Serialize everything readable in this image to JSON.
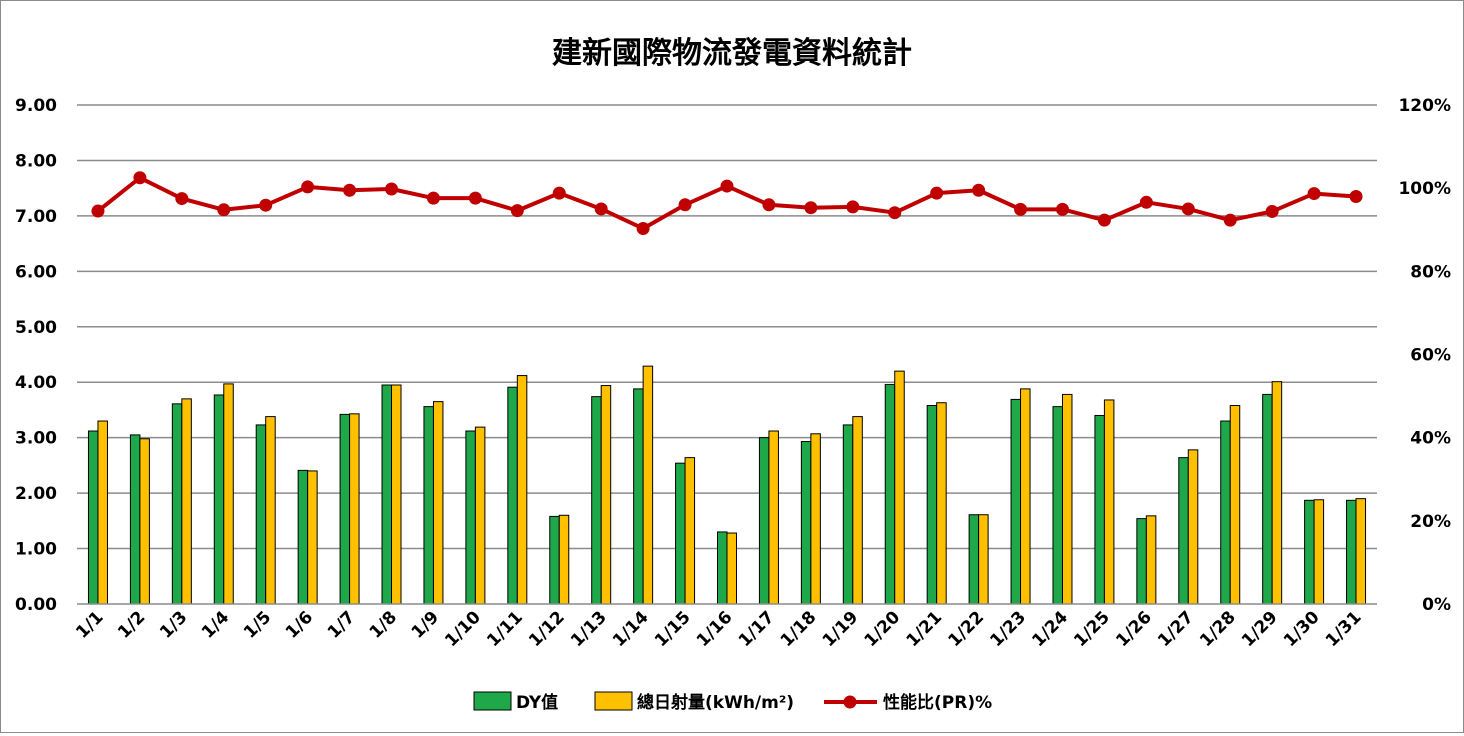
{
  "chart_data": {
    "type": "bar+line",
    "title": "建新國際物流發電資料統計",
    "categories": [
      "1/1",
      "1/2",
      "1/3",
      "1/4",
      "1/5",
      "1/6",
      "1/7",
      "1/8",
      "1/9",
      "1/10",
      "1/11",
      "1/12",
      "1/13",
      "1/14",
      "1/15",
      "1/16",
      "1/17",
      "1/18",
      "1/19",
      "1/20",
      "1/21",
      "1/22",
      "1/23",
      "1/24",
      "1/25",
      "1/26",
      "1/27",
      "1/28",
      "1/29",
      "1/30",
      "1/31"
    ],
    "series": [
      {
        "name": "DY值",
        "type": "bar",
        "axis": "left",
        "color": "#1ea84a",
        "values": [
          3.12,
          3.05,
          3.61,
          3.77,
          3.23,
          2.41,
          3.42,
          3.95,
          3.56,
          3.12,
          3.91,
          1.58,
          3.74,
          3.88,
          2.54,
          1.3,
          3.0,
          2.93,
          3.23,
          3.96,
          3.58,
          1.61,
          3.69,
          3.56,
          3.4,
          1.54,
          2.64,
          3.3,
          3.78,
          1.87,
          1.87
        ]
      },
      {
        "name": "總日射量(kWh/m²)",
        "type": "bar",
        "axis": "left",
        "color": "#ffc000",
        "values": [
          3.3,
          2.98,
          3.7,
          3.97,
          3.38,
          2.4,
          3.43,
          3.95,
          3.65,
          3.19,
          4.12,
          1.6,
          3.94,
          4.29,
          2.64,
          1.28,
          3.12,
          3.07,
          3.38,
          4.2,
          3.63,
          1.61,
          3.88,
          3.78,
          3.68,
          1.59,
          2.78,
          3.58,
          4.01,
          1.88,
          1.9
        ]
      },
      {
        "name": "性能比(PR)%",
        "type": "line",
        "axis": "right",
        "color": "#c00000",
        "values": [
          94.5,
          102.5,
          97.5,
          94.8,
          95.9,
          100.3,
          99.5,
          99.8,
          97.6,
          97.6,
          94.6,
          98.8,
          95.0,
          90.3,
          96.0,
          100.5,
          96.0,
          95.3,
          95.5,
          94.1,
          98.8,
          99.5,
          94.9,
          94.9,
          92.3,
          96.6,
          95.0,
          92.3,
          94.4,
          98.7,
          98.0
        ]
      }
    ],
    "y_left": {
      "min": 0,
      "max": 9,
      "ticks": [
        "0.00",
        "1.00",
        "2.00",
        "3.00",
        "4.00",
        "5.00",
        "6.00",
        "7.00",
        "8.00",
        "9.00"
      ]
    },
    "y_right": {
      "min": 0,
      "max": 120,
      "ticks": [
        "0%",
        "20%",
        "40%",
        "60%",
        "80%",
        "100%",
        "120%"
      ]
    },
    "grid": true,
    "legend_position": "bottom"
  }
}
